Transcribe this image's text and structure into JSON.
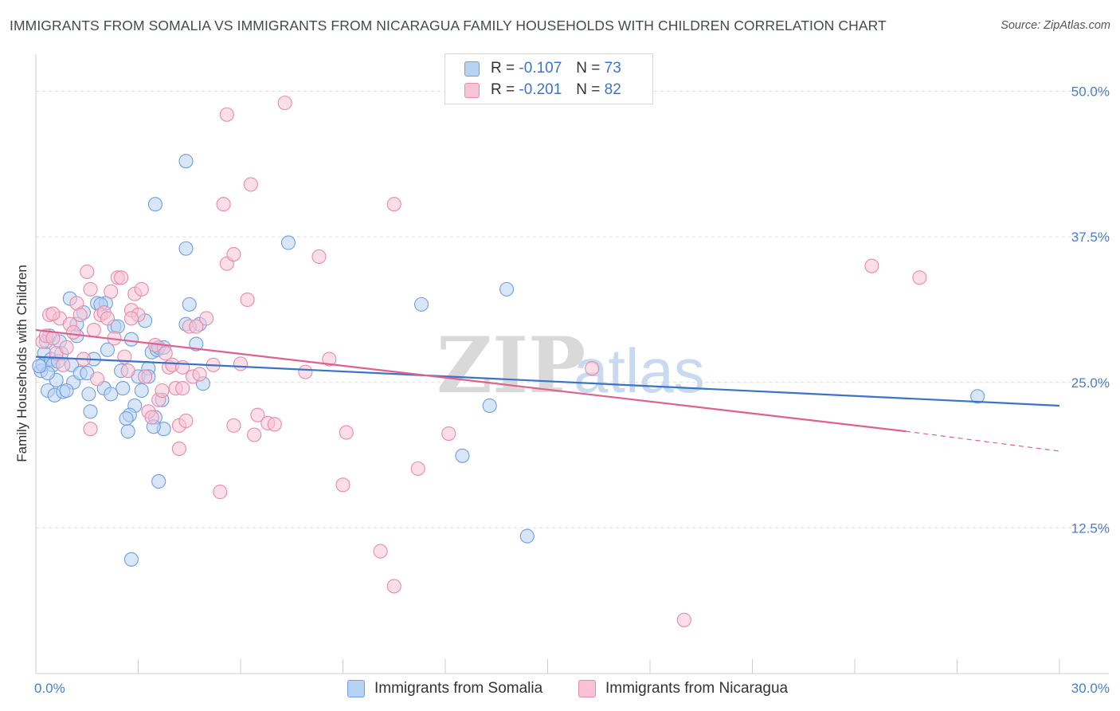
{
  "title": "IMMIGRANTS FROM SOMALIA VS IMMIGRANTS FROM NICARAGUA FAMILY HOUSEHOLDS WITH CHILDREN CORRELATION CHART",
  "source": "Source: ZipAtlas.com",
  "watermark": {
    "zip": "ZIP",
    "atlas": "atlas"
  },
  "legend": {
    "r_label": "R =",
    "n_label": "N =",
    "series": [
      {
        "name": "Immigrants from Somalia",
        "r": "-0.107",
        "n": "73",
        "fill": "#b8d2f3",
        "stroke": "#6e9fe0"
      },
      {
        "name": "Immigrants from Nicaragua",
        "r": "-0.201",
        "n": "82",
        "fill": "#f8c3d4",
        "stroke": "#e88aa8"
      }
    ]
  },
  "chart_data": {
    "type": "scatter",
    "title": "IMMIGRANTS FROM SOMALIA VS IMMIGRANTS FROM NICARAGUA FAMILY HOUSEHOLDS WITH CHILDREN CORRELATION CHART",
    "xlabel": "",
    "ylabel": "Family Households with Children",
    "xlim": [
      0,
      30
    ],
    "ylim": [
      0,
      52.5
    ],
    "x_tick_labels": [
      "0.0%",
      "30.0%"
    ],
    "y_ticks": [
      12.5,
      25.0,
      37.5,
      50.0
    ],
    "y_tick_labels": [
      "12.5%",
      "25.0%",
      "37.5%",
      "50.0%"
    ],
    "grid": true,
    "series": [
      {
        "name": "Immigrants from Somalia",
        "color": "#6e9fe0",
        "line_color": "#3a74c8",
        "trend": {
          "x": [
            0,
            30
          ],
          "y": [
            27.2,
            23.0
          ]
        },
        "points": [
          [
            0.15,
            26.0
          ],
          [
            0.2,
            26.5
          ],
          [
            0.25,
            27.5
          ],
          [
            0.3,
            28.5
          ],
          [
            0.35,
            24.3
          ],
          [
            0.4,
            29.0
          ],
          [
            0.45,
            27.0
          ],
          [
            0.5,
            26.5
          ],
          [
            0.55,
            23.9
          ],
          [
            0.6,
            25.2
          ],
          [
            0.65,
            26.8
          ],
          [
            0.7,
            28.5
          ],
          [
            0.75,
            27.5
          ],
          [
            0.8,
            24.2
          ],
          [
            1.0,
            32.2
          ],
          [
            1.05,
            26.5
          ],
          [
            1.1,
            25.0
          ],
          [
            1.2,
            29.0
          ],
          [
            1.3,
            25.8
          ],
          [
            1.4,
            31.0
          ],
          [
            1.5,
            25.8
          ],
          [
            1.6,
            22.5
          ],
          [
            1.7,
            27.0
          ],
          [
            1.8,
            31.8
          ],
          [
            2.0,
            24.5
          ],
          [
            2.05,
            31.8
          ],
          [
            2.1,
            27.8
          ],
          [
            2.2,
            24.0
          ],
          [
            2.3,
            29.8
          ],
          [
            2.5,
            26.0
          ],
          [
            2.55,
            24.5
          ],
          [
            2.7,
            20.8
          ],
          [
            2.8,
            28.7
          ],
          [
            2.9,
            23.0
          ],
          [
            3.0,
            25.5
          ],
          [
            3.1,
            24.3
          ],
          [
            3.2,
            30.3
          ],
          [
            3.3,
            26.2
          ],
          [
            3.4,
            27.6
          ],
          [
            3.5,
            22.0
          ],
          [
            3.55,
            27.8
          ],
          [
            3.6,
            28.0
          ],
          [
            3.7,
            23.5
          ],
          [
            3.75,
            21.0
          ],
          [
            4.5,
            31.7
          ],
          [
            4.7,
            28.3
          ],
          [
            4.8,
            30.0
          ],
          [
            4.4,
            36.5
          ],
          [
            4.4,
            44.0
          ],
          [
            3.5,
            40.3
          ],
          [
            3.6,
            16.5
          ],
          [
            2.8,
            9.8
          ],
          [
            7.4,
            37.0
          ],
          [
            11.3,
            31.7
          ],
          [
            13.8,
            33.0
          ],
          [
            13.3,
            23.0
          ],
          [
            14.4,
            11.8
          ],
          [
            12.5,
            18.7
          ],
          [
            27.6,
            23.8
          ],
          [
            2.4,
            29.8
          ],
          [
            3.3,
            25.5
          ],
          [
            0.9,
            24.3
          ],
          [
            1.55,
            24.0
          ],
          [
            2.75,
            22.2
          ],
          [
            4.4,
            30.0
          ],
          [
            2.65,
            21.9
          ],
          [
            0.35,
            25.8
          ],
          [
            3.45,
            21.2
          ],
          [
            1.2,
            30.0
          ],
          [
            0.1,
            26.4
          ],
          [
            1.9,
            31.7
          ],
          [
            3.75,
            28.0
          ],
          [
            4.9,
            24.9
          ]
        ]
      },
      {
        "name": "Immigrants from Nicaragua",
        "color": "#e88aa8",
        "line_color": "#e0608e",
        "trend": {
          "x": [
            0,
            25.5
          ],
          "y": [
            29.5,
            20.8
          ]
        },
        "trend_dashed": {
          "x": [
            25.5,
            30
          ],
          "y": [
            20.8,
            19.1
          ]
        },
        "points": [
          [
            0.2,
            28.5
          ],
          [
            0.3,
            29.0
          ],
          [
            0.4,
            30.8
          ],
          [
            0.5,
            28.8
          ],
          [
            0.6,
            27.5
          ],
          [
            0.7,
            30.5
          ],
          [
            0.8,
            26.5
          ],
          [
            0.9,
            28.0
          ],
          [
            1.0,
            30.0
          ],
          [
            1.1,
            29.3
          ],
          [
            1.2,
            31.8
          ],
          [
            1.3,
            30.8
          ],
          [
            1.4,
            27.0
          ],
          [
            1.5,
            34.5
          ],
          [
            1.6,
            33.0
          ],
          [
            1.7,
            29.5
          ],
          [
            1.8,
            25.3
          ],
          [
            1.9,
            30.8
          ],
          [
            2.0,
            31.0
          ],
          [
            2.1,
            30.5
          ],
          [
            2.2,
            32.8
          ],
          [
            2.3,
            28.8
          ],
          [
            2.4,
            34.0
          ],
          [
            2.5,
            34.0
          ],
          [
            2.6,
            27.2
          ],
          [
            2.7,
            26.0
          ],
          [
            2.8,
            31.2
          ],
          [
            2.9,
            32.6
          ],
          [
            3.0,
            30.8
          ],
          [
            3.1,
            33.0
          ],
          [
            3.2,
            25.5
          ],
          [
            3.3,
            22.5
          ],
          [
            3.4,
            22.0
          ],
          [
            3.5,
            28.2
          ],
          [
            3.6,
            23.5
          ],
          [
            3.7,
            24.3
          ],
          [
            3.8,
            27.5
          ],
          [
            3.9,
            26.3
          ],
          [
            4.0,
            26.5
          ],
          [
            4.1,
            24.5
          ],
          [
            4.2,
            21.3
          ],
          [
            4.3,
            26.3
          ],
          [
            4.4,
            21.7
          ],
          [
            4.5,
            29.8
          ],
          [
            4.6,
            25.5
          ],
          [
            4.7,
            29.8
          ],
          [
            4.8,
            25.7
          ],
          [
            5.0,
            30.5
          ],
          [
            5.2,
            26.5
          ],
          [
            5.4,
            15.6
          ],
          [
            5.6,
            35.2
          ],
          [
            5.8,
            21.3
          ],
          [
            6.0,
            26.6
          ],
          [
            6.2,
            32.1
          ],
          [
            6.5,
            22.2
          ],
          [
            6.8,
            21.5
          ],
          [
            5.6,
            48.0
          ],
          [
            7.3,
            49.0
          ],
          [
            5.5,
            40.3
          ],
          [
            6.3,
            42.0
          ],
          [
            10.5,
            40.3
          ],
          [
            8.3,
            35.8
          ],
          [
            5.8,
            36.0
          ],
          [
            8.6,
            27.0
          ],
          [
            9.1,
            20.7
          ],
          [
            10.1,
            10.5
          ],
          [
            10.5,
            7.5
          ],
          [
            11.2,
            17.6
          ],
          [
            12.1,
            20.6
          ],
          [
            16.3,
            26.2
          ],
          [
            19.0,
            4.6
          ],
          [
            24.5,
            35.0
          ],
          [
            25.9,
            34.0
          ],
          [
            9.0,
            16.2
          ],
          [
            7.9,
            25.9
          ],
          [
            6.4,
            20.5
          ],
          [
            1.6,
            21.0
          ],
          [
            0.5,
            30.9
          ],
          [
            4.2,
            19.3
          ],
          [
            2.8,
            30.5
          ],
          [
            4.3,
            24.5
          ],
          [
            7.0,
            21.4
          ]
        ]
      }
    ]
  }
}
